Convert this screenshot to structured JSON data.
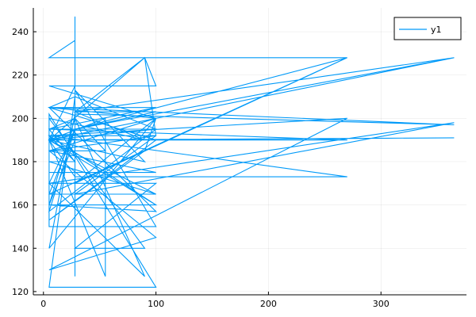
{
  "chart_data": {
    "type": "line",
    "title": "",
    "xlabel": "",
    "ylabel": "",
    "xlim": [
      -9,
      376
    ],
    "ylim": [
      118.5,
      251
    ],
    "x_ticks": [
      0,
      100,
      200,
      300
    ],
    "x_tick_labels": [
      "0",
      "100",
      "200",
      "300"
    ],
    "y_ticks": [
      120,
      140,
      160,
      180,
      200,
      220,
      240
    ],
    "y_tick_labels": [
      "120",
      "140",
      "160",
      "180",
      "200",
      "220",
      "240"
    ],
    "grid": true,
    "legend": "top-right",
    "series": [
      {
        "name": "y1",
        "color": "#009af9",
        "x": [
          28,
          28,
          28,
          28,
          5,
          180,
          270,
          28,
          365,
          28,
          90,
          100,
          5,
          100,
          28,
          270,
          5,
          5,
          100,
          5,
          100,
          5,
          28,
          90,
          5,
          365,
          28,
          100,
          5,
          100,
          5,
          270,
          5,
          270,
          28,
          5,
          100,
          5,
          28,
          5,
          100,
          5,
          5,
          100,
          28,
          90,
          5,
          365,
          5,
          55,
          55,
          5,
          100,
          5,
          100,
          28,
          28,
          5,
          100,
          5,
          28,
          100,
          28,
          90,
          5,
          5,
          100,
          5,
          55,
          28,
          5,
          270,
          100,
          5,
          100,
          5,
          28,
          28,
          5,
          100,
          5,
          100,
          90,
          5,
          365,
          28,
          100,
          5,
          90,
          100,
          5,
          28,
          365,
          5,
          100,
          5,
          270,
          5,
          100,
          5,
          28,
          5,
          100,
          28,
          90,
          5,
          5,
          100,
          5,
          28,
          5
        ],
        "y": [
          247,
          195,
          127,
          236,
          228,
          228,
          228,
          195,
          228,
          203,
          228,
          215,
          215,
          200,
          170,
          228,
          165,
          185,
          200,
          205,
          157,
          160,
          200,
          127,
          170,
          198,
          165,
          192,
          185,
          145,
          130,
          200,
          192,
          173,
          173,
          190,
          190,
          205,
          210,
          122,
          122,
          202,
          150,
          150,
          213,
          180,
          190,
          228,
          190,
          200,
          127,
          190,
          160,
          190,
          195,
          210,
          180,
          195,
          195,
          157,
          195,
          203,
          203,
          190,
          200,
          175,
          175,
          185,
          185,
          200,
          195,
          190,
          190,
          205,
          200,
          190,
          215,
          190,
          160,
          160,
          192,
          192,
          228,
          190,
          191,
          190,
          190,
          153,
          185,
          200,
          140,
          202,
          197,
          205,
          205,
          195,
          190,
          190,
          165,
          165,
          195,
          170,
          170,
          140,
          140,
          200,
          165,
          165,
          180,
          180,
          192
        ]
      }
    ]
  }
}
